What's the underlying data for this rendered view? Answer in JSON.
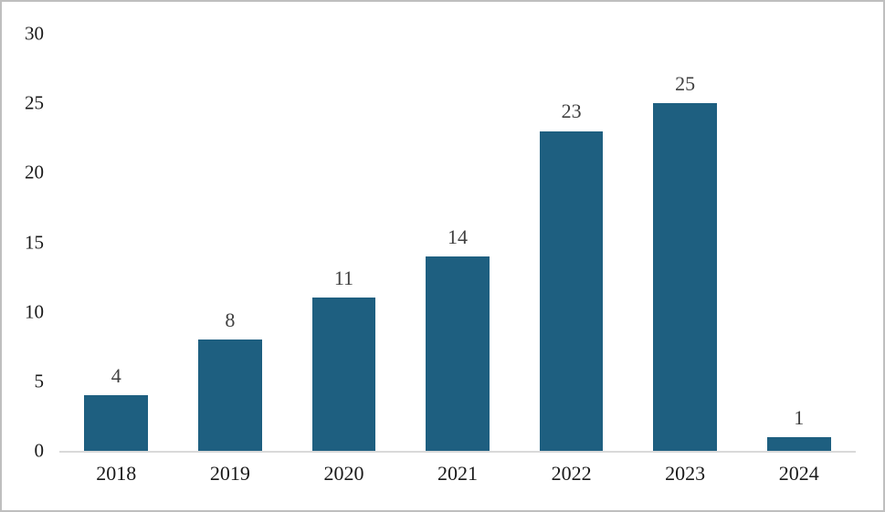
{
  "chart_data": {
    "type": "bar",
    "categories": [
      "2018",
      "2019",
      "2020",
      "2021",
      "2022",
      "2023",
      "2024"
    ],
    "values": [
      4,
      8,
      11,
      14,
      23,
      25,
      1
    ],
    "data_labels": [
      "4",
      "8",
      "11",
      "14",
      "23",
      "25",
      "1"
    ],
    "title": "",
    "xlabel": "",
    "ylabel": "",
    "ylim": [
      0,
      30
    ],
    "yticks": [
      "0",
      "5",
      "10",
      "15",
      "20",
      "25",
      "30"
    ],
    "grid": false,
    "legend": false,
    "colors": {
      "bar": "#1e5f80",
      "data_label": "#404040",
      "axis_tick_label": "#1a1a1a",
      "axis_line": "#d9d9d9",
      "figure_border": "#bfbfbf",
      "background": "#ffffff"
    }
  }
}
